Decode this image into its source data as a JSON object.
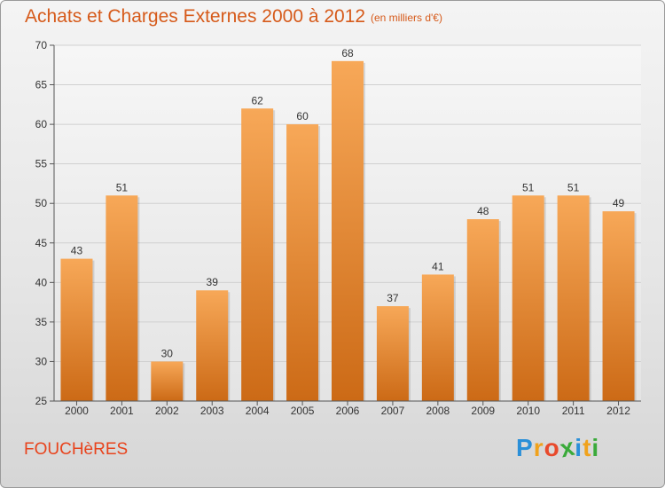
{
  "header": {
    "title": "Achats et Charges Externes 2000 à 2012",
    "subtitle": "(en milliers d'€)"
  },
  "footer": {
    "commune": "FOUCHèRES",
    "logo_letters": [
      "P",
      "r",
      "o",
      "x",
      "i",
      "t",
      "i"
    ],
    "logo_colors": [
      "#2a8fd8",
      "#f0a21c",
      "#e84a2c",
      "#3aaa3a",
      "#2a8fd8",
      "#f0a21c",
      "#3aaa3a"
    ]
  },
  "colors": {
    "bar_light": "#f7a858",
    "bar_dark": "#cc6a16",
    "grid": "#d0d0d0",
    "axis": "#555555"
  },
  "chart_data": {
    "type": "bar",
    "title": "Achats et Charges Externes 2000 à 2012",
    "subtitle": "(en milliers d'€)",
    "categories": [
      "2000",
      "2001",
      "2002",
      "2003",
      "2004",
      "2005",
      "2006",
      "2007",
      "2008",
      "2009",
      "2010",
      "2011",
      "2012"
    ],
    "values": [
      43,
      51,
      30,
      39,
      62,
      60,
      68,
      37,
      41,
      48,
      51,
      51,
      49
    ],
    "ylim": [
      25,
      70
    ],
    "yticks": [
      25,
      30,
      35,
      40,
      45,
      50,
      55,
      60,
      65,
      70
    ],
    "grid": true,
    "data_labels": true
  }
}
